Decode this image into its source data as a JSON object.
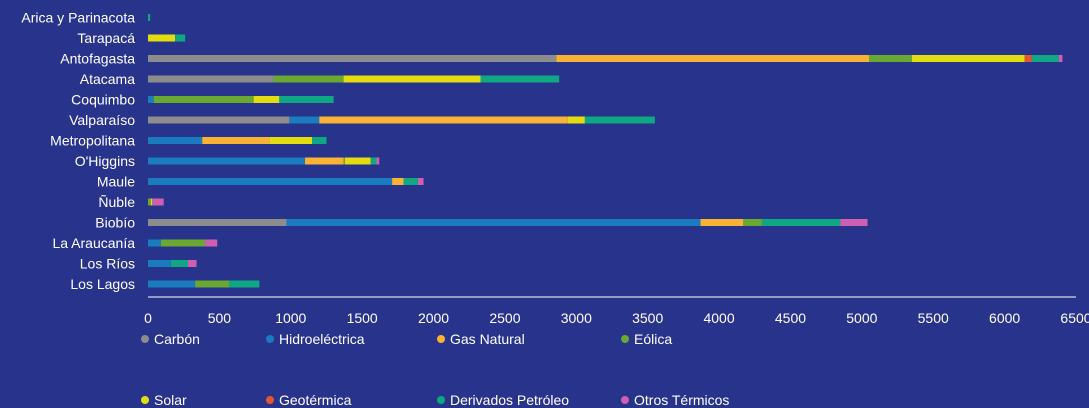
{
  "chart_data": {
    "type": "bar",
    "orientation": "horizontal",
    "stacked": true,
    "categories": [
      "Arica y Parinacota",
      "Tarapacá",
      "Antofagasta",
      "Atacama",
      "Coquimbo",
      "Valparaíso",
      "Metropolitana",
      "O'Higgins",
      "Maule",
      "Ñuble",
      "Biobío",
      "La Araucanía",
      "Los Ríos",
      "Los Lagos"
    ],
    "xlim": [
      0,
      6500
    ],
    "xticks": [
      0,
      500,
      1000,
      1500,
      2000,
      2500,
      3000,
      3500,
      4000,
      4500,
      5000,
      5500,
      6000,
      6500
    ],
    "grid": false,
    "legend_position": "bottom",
    "series": [
      {
        "name": "Carbón",
        "color": "#8c8c8c",
        "values": [
          0,
          0,
          2860,
          880,
          0,
          990,
          0,
          0,
          0,
          0,
          970,
          0,
          0,
          0
        ]
      },
      {
        "name": "Hidroeléctrica",
        "color": "#1a7bbf",
        "values": [
          0,
          0,
          0,
          0,
          40,
          210,
          380,
          1100,
          1710,
          0,
          2900,
          90,
          160,
          330
        ]
      },
      {
        "name": "Gas Natural",
        "color": "#f9b233",
        "values": [
          0,
          0,
          2190,
          0,
          0,
          1740,
          470,
          270,
          80,
          0,
          300,
          0,
          0,
          0
        ]
      },
      {
        "name": "Eólica",
        "color": "#6aa832",
        "values": [
          0,
          0,
          300,
          490,
          700,
          0,
          0,
          10,
          0,
          20,
          130,
          310,
          0,
          240
        ]
      },
      {
        "name": "Solar",
        "color": "#e3dd10",
        "values": [
          0,
          190,
          790,
          960,
          180,
          120,
          300,
          180,
          0,
          10,
          0,
          0,
          0,
          0
        ]
      },
      {
        "name": "Geotérmica",
        "color": "#e4572e",
        "values": [
          0,
          0,
          50,
          0,
          0,
          0,
          0,
          0,
          0,
          0,
          0,
          0,
          0,
          0
        ]
      },
      {
        "name": "Derivados Petróleo",
        "color": "#10a882",
        "values": [
          15,
          70,
          190,
          550,
          380,
          490,
          100,
          40,
          100,
          0,
          550,
          0,
          120,
          210
        ]
      },
      {
        "name": "Otros Térmicos",
        "color": "#cf5fb0",
        "values": [
          0,
          0,
          25,
          0,
          0,
          0,
          0,
          20,
          40,
          80,
          190,
          85,
          60,
          0
        ]
      }
    ]
  }
}
